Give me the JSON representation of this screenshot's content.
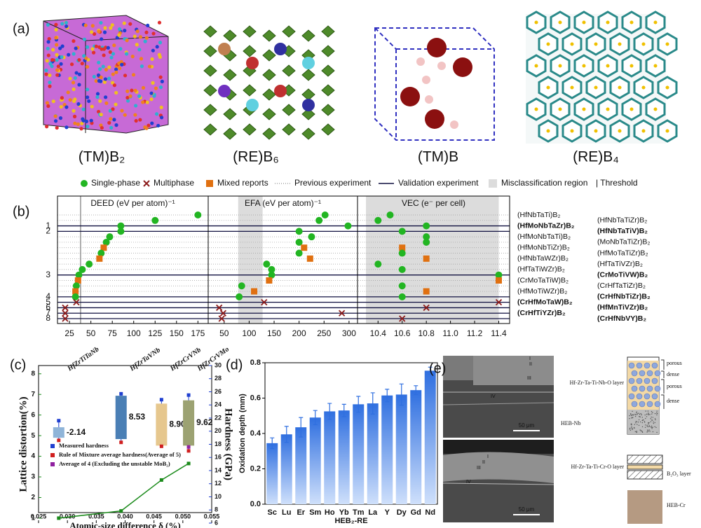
{
  "panel_a": {
    "label": "(a)",
    "captions": [
      "(TM)B₂",
      "(RE)B₆",
      "(TM)B",
      "(RE)B₄"
    ]
  },
  "chart_data": [
    {
      "type": "rank-scatter",
      "label": "(b)",
      "legend": {
        "single": "Single-phase",
        "multi": "Multiphase",
        "mixed": "Mixed reports",
        "previous": "Previous experiment",
        "validation": "Validation experiment",
        "misclass": "Misclassification region",
        "threshold": "| Threshold"
      },
      "colors": {
        "single": "#22b522",
        "multi": "#8b1a1a",
        "mixed": "#e07010",
        "misclass": "#dcdcdc",
        "validation": "#101040"
      },
      "panels": [
        {
          "key": "deed",
          "xlabel": "DEED (eV per atom)⁻¹",
          "xlim": [
            11,
            187
          ],
          "xticks": [
            25,
            50,
            75,
            100,
            125,
            150,
            175
          ],
          "threshold": 38
        },
        {
          "key": "efa",
          "xlabel": "EFA (eV per atom)⁻¹",
          "xlim": [
            18,
            317
          ],
          "xticks": [
            50,
            100,
            150,
            200,
            250,
            300
          ],
          "misclass": [
            78,
            127
          ]
        },
        {
          "key": "vec",
          "xlabel": "VEC (e⁻ per cell)",
          "xlim": [
            10.23,
            11.49
          ],
          "xticks": [
            10.4,
            10.6,
            10.8,
            {
              "value": 11,
              "label": "11.0"
            },
            11.2,
            11.4
          ],
          "misclass": [
            10.3,
            11.4
          ]
        }
      ],
      "compositions": [
        {
          "name": "(HfNbTaTi)B₂",
          "side": "left",
          "phase": "single",
          "deed": 175,
          "efa": 252,
          "vec": 10.5
        },
        {
          "name": "(HfNbTaTiZr)B₂",
          "side": "right",
          "phase": "single",
          "deed": 125,
          "efa": 240,
          "vec": 10.4
        },
        {
          "name": "(HfMoNbTaZr)B₂",
          "side": "left",
          "phase": "single",
          "deed": 85,
          "efa": 298,
          "vec": 10.8,
          "rank": 1
        },
        {
          "name": "(HfNbTaTiV)B₂",
          "side": "right",
          "phase": "single",
          "deed": 85,
          "efa": 200,
          "vec": 10.6,
          "rank": 2
        },
        {
          "name": "(HfMoNbTaTi)B₂",
          "side": "left",
          "phase": "single",
          "deed": 72,
          "efa": 225,
          "vec": 10.8
        },
        {
          "name": "(MoNbTaTiZr)B₂",
          "side": "right",
          "phase": "single",
          "deed": 68,
          "efa": 200,
          "vec": 10.8
        },
        {
          "name": "(HfMoNbTiZr)B₂",
          "side": "left",
          "phase": "mixed",
          "deed": 65,
          "efa": 210,
          "vec": 10.6
        },
        {
          "name": "(HfMoTaTiZr)B₂",
          "side": "right",
          "phase": "single",
          "deed": 62,
          "efa": 200,
          "vec": 10.6
        },
        {
          "name": "(HfNbTaWZr)B₂",
          "side": "left",
          "phase": "mixed",
          "deed": 60,
          "efa": 222,
          "vec": 10.8
        },
        {
          "name": "(HfTaTiVZr)B₂",
          "side": "right",
          "phase": "single",
          "deed": 48,
          "efa": 135,
          "vec": 10.4
        },
        {
          "name": "(HfTaTiWZr)B₂",
          "side": "left",
          "phase": "single",
          "deed": 40,
          "efa": 145,
          "vec": 10.6
        },
        {
          "name": "(CrMoTiVW)B₂",
          "side": "right",
          "phase": "single",
          "deed": 36,
          "efa": 145,
          "vec": 11.4,
          "rank": 3
        },
        {
          "name": "(CrMoTaTiW)B₂",
          "side": "left",
          "phase": "mixed",
          "deed": 35,
          "efa": 140,
          "vec": 11.4
        },
        {
          "name": "(CrHfTaTiZr)B₂",
          "side": "right",
          "phase": "single",
          "deed": 33,
          "efa": 85,
          "vec": 10.6
        },
        {
          "name": "(HfMoTiWZr)B₂",
          "side": "left",
          "phase": "mixed",
          "deed": 32,
          "efa": 110,
          "vec": 10.8
        },
        {
          "name": "(CrHfNbTiZr)B₂",
          "side": "right",
          "phase": "single",
          "deed": 32,
          "efa": 80,
          "vec": 10.6,
          "rank": 4
        },
        {
          "name": "(CrHfMoTaW)B₂",
          "side": "left",
          "phase": "multi",
          "deed": 33,
          "efa": 130,
          "vec": 11.4,
          "rank": 5
        },
        {
          "name": "(HfMnTiVZr)B₂",
          "side": "right",
          "phase": "multi",
          "deed": 20,
          "efa": 40,
          "vec": 10.8,
          "rank": 6
        },
        {
          "name": "(CrHfTiYZr)B₂",
          "side": "left",
          "phase": "multi",
          "deed": 20,
          "efa": 48,
          "vec": 10.1,
          "rank": 7
        },
        {
          "name": "(CrHfNbVY)B₂",
          "side": "right",
          "phase": "multi",
          "deed": 20,
          "efa": 45,
          "vec": 10.6,
          "rank": 8
        }
      ]
    },
    {
      "type": "dual-line-box",
      "label": "(c)",
      "xlabel": "Atomic-size difference δ (%)",
      "ylabel": "Lattice distortion(%)",
      "y2label": "Hardness (GPa)",
      "xlim": [
        0.025,
        0.055
      ],
      "xticks": [
        0.025,
        {
          "value": 0.03,
          "label": "0.030"
        },
        0.035,
        {
          "value": 0.04,
          "label": "0.040"
        },
        0.045,
        {
          "value": 0.05,
          "label": "0.050"
        },
        0.055
      ],
      "ylim": [
        0.76,
        8.4
      ],
      "yticks": [
        1,
        2,
        3,
        4,
        5,
        6,
        7,
        8
      ],
      "y2lim": [
        6,
        30
      ],
      "y2ticks": [
        6,
        8,
        10,
        12,
        14,
        16,
        18,
        20,
        22,
        24,
        26,
        28,
        30
      ],
      "series": [
        {
          "name": "Lattice distortion",
          "color": "#1a8a1a",
          "x": [
            0.0285,
            0.0393,
            0.0463,
            0.051
          ],
          "values": [
            1.0,
            1.35,
            2.85,
            3.65
          ]
        }
      ],
      "legend": {
        "measured": "Measured hardness",
        "rom": "Rule of Mixture average hardness(Average of 5)",
        "avg4": "Average of 4 (Excluding the unstable MoB₂)"
      },
      "colors": {
        "measured": "#1f3fd0",
        "rom": "#d01f1f",
        "avg4": "#9020a0"
      },
      "boxes": [
        {
          "composition": "HfZrTiTaNb",
          "x": 0.0285,
          "low": 19.0,
          "high": 20.6,
          "measured": 21.6,
          "rom": 18.6,
          "color": "#8fb4d8",
          "annotation": "-2.14"
        },
        {
          "composition": "HfZrTaVNb",
          "x": 0.0393,
          "low": 18.8,
          "high": 25.4,
          "measured": 25.7,
          "rom": 18.3,
          "color": "#4a7fb5",
          "annotation": "8.53"
        },
        {
          "composition": "HfZrCrVNb",
          "x": 0.0463,
          "low": 17.8,
          "high": 24.2,
          "measured": 24.8,
          "rom": 17.7,
          "color": "#e6c78e",
          "annotation": "8.90"
        },
        {
          "composition": "HfZrCrVMo",
          "x": 0.051,
          "low": 17.8,
          "high": 24.7,
          "measured": 25.5,
          "rom": 17.0,
          "avg4": 17.6,
          "color": "#9ca272",
          "annotation": "9.62"
        }
      ]
    },
    {
      "type": "bar",
      "label": "(d)",
      "ylabel": "Oxidation depth (mm)",
      "xlabel": "HEB₂-RE",
      "categories": [
        "Sc",
        "Lu",
        "Er",
        "Sm",
        "Ho",
        "Yb",
        "Tm",
        "La",
        "Y",
        "Dy",
        "Gd",
        "Nd"
      ],
      "values": [
        0.345,
        0.395,
        0.435,
        0.49,
        0.525,
        0.53,
        0.565,
        0.57,
        0.615,
        0.62,
        0.645,
        0.755
      ],
      "errors": [
        0.03,
        0.045,
        0.055,
        0.04,
        0.045,
        0.035,
        0.045,
        0.06,
        0.035,
        0.06,
        0.025,
        0.02
      ],
      "color": "#2f6fe0",
      "ylim": [
        0,
        0.8
      ],
      "yticks": [
        {
          "value": 0,
          "label": "0.0"
        },
        0.2,
        0.4,
        0.6,
        0.8
      ]
    }
  ],
  "panel_e": {
    "label": "(e)",
    "scale_bars": [
      "50 μm",
      "50 μm"
    ],
    "top_layers": [
      "I",
      "II",
      "III",
      "IV"
    ],
    "bottom_layers": [
      "I",
      "II",
      "III",
      "IV"
    ],
    "nb_schematic": {
      "layer": "Hf-Zr-Ta-Ti-Nb-O layer",
      "substrate": "HEB-Nb",
      "zones": [
        "porous",
        "dense",
        "porous",
        "dense"
      ]
    },
    "cr_schematic": {
      "layer": "Hf-Zr-Ta-Ti-Cr-O layer",
      "oxide": "B₂O₃ layer",
      "substrate": "HEB-Cr"
    }
  }
}
